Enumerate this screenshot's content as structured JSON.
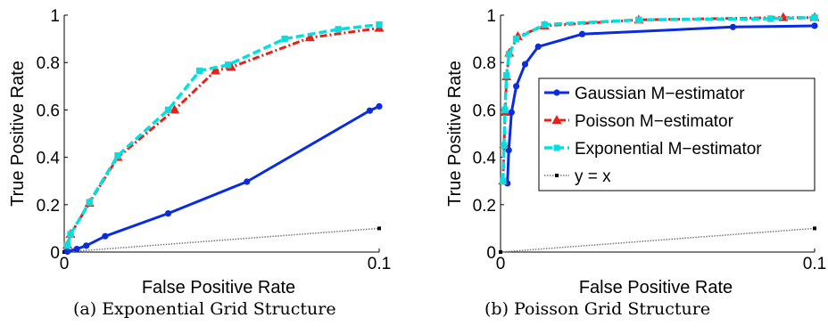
{
  "chart_data": [
    {
      "type": "line",
      "caption": "(a) Exponential Grid Structure",
      "xlabel": "False Positive Rate",
      "ylabel": "True Positive Rate",
      "xlim": [
        0,
        0.1
      ],
      "ylim": [
        0,
        1
      ],
      "xticks": [
        "0",
        "0.1"
      ],
      "yticks": [
        "0",
        "0.2",
        "0.4",
        "0.6",
        "0.8",
        "1"
      ],
      "grid": false,
      "legend": null,
      "series": [
        {
          "name": "Gaussian M−estimator",
          "color": "#0a2ce0",
          "marker": "circle",
          "points": [
            [
              0.001,
              0.002
            ],
            [
              0.004,
              0.013
            ],
            [
              0.007,
              0.027
            ],
            [
              0.013,
              0.067
            ],
            [
              0.033,
              0.163
            ],
            [
              0.058,
              0.297
            ],
            [
              0.097,
              0.597
            ],
            [
              0.1,
              0.615
            ]
          ]
        },
        {
          "name": "Poisson M−estimator",
          "color": "#e82018",
          "marker": "triangle",
          "points": [
            [
              0.001,
              0.03
            ],
            [
              0.002,
              0.075
            ],
            [
              0.008,
              0.207
            ],
            [
              0.017,
              0.4
            ],
            [
              0.035,
              0.6
            ],
            [
              0.048,
              0.765
            ],
            [
              0.053,
              0.78
            ],
            [
              0.078,
              0.905
            ],
            [
              0.1,
              0.945
            ]
          ]
        },
        {
          "name": "Exponential M−estimator",
          "color": "#00e0e0",
          "marker": "square",
          "points": [
            [
              0.001,
              0.028
            ],
            [
              0.002,
              0.075
            ],
            [
              0.008,
              0.21
            ],
            [
              0.017,
              0.407
            ],
            [
              0.033,
              0.6
            ],
            [
              0.043,
              0.765
            ],
            [
              0.052,
              0.79
            ],
            [
              0.07,
              0.9
            ],
            [
              0.087,
              0.94
            ],
            [
              0.1,
              0.96
            ]
          ]
        },
        {
          "name": "y = x",
          "color": "#777777",
          "marker": "dot",
          "points": [
            [
              0,
              0
            ],
            [
              0.1,
              0.1
            ]
          ]
        }
      ]
    },
    {
      "type": "line",
      "caption": "(b) Poisson Grid Structure",
      "xlabel": "False Positive Rate",
      "ylabel": "True Positive Rate",
      "xlim": [
        0,
        0.1
      ],
      "ylim": [
        0,
        1
      ],
      "xticks": [
        "0",
        "0.1"
      ],
      "yticks": [
        "0",
        "0.2",
        "0.4",
        "0.6",
        "0.8",
        "1"
      ],
      "grid": false,
      "legend": "center-right",
      "series": [
        {
          "name": "Gaussian M−estimator",
          "color": "#0a2ce0",
          "marker": "circle",
          "points": [
            [
              0.0022,
              0.29
            ],
            [
              0.0026,
              0.43
            ],
            [
              0.0035,
              0.59
            ],
            [
              0.005,
              0.7
            ],
            [
              0.0078,
              0.793
            ],
            [
              0.012,
              0.867
            ],
            [
              0.026,
              0.92
            ],
            [
              0.074,
              0.95
            ],
            [
              0.1,
              0.955
            ]
          ]
        },
        {
          "name": "Poisson M−estimator",
          "color": "#e82018",
          "marker": "triangle",
          "points": [
            [
              0.0008,
              0.3
            ],
            [
              0.0011,
              0.455
            ],
            [
              0.0015,
              0.59
            ],
            [
              0.0019,
              0.74
            ],
            [
              0.0028,
              0.84
            ],
            [
              0.0055,
              0.91
            ],
            [
              0.014,
              0.955
            ],
            [
              0.044,
              0.98
            ],
            [
              0.09,
              0.99
            ],
            [
              0.1,
              0.99
            ]
          ]
        },
        {
          "name": "Exponential M−estimator",
          "color": "#00e0e0",
          "marker": "square",
          "points": [
            [
              0.0008,
              0.3
            ],
            [
              0.0011,
              0.45
            ],
            [
              0.0014,
              0.6
            ],
            [
              0.0019,
              0.745
            ],
            [
              0.0027,
              0.835
            ],
            [
              0.005,
              0.9
            ],
            [
              0.014,
              0.96
            ],
            [
              0.044,
              0.98
            ],
            [
              0.086,
              0.985
            ],
            [
              0.1,
              0.99
            ]
          ]
        },
        {
          "name": "y = x",
          "color": "#777777",
          "marker": "dot",
          "points": [
            [
              0,
              0
            ],
            [
              0.1,
              0.1
            ]
          ]
        }
      ]
    }
  ]
}
